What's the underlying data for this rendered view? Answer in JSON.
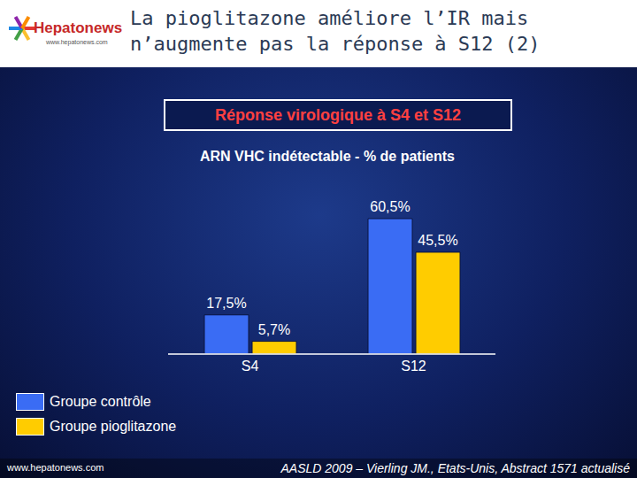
{
  "header": {
    "title": "La pioglitazone améliore l’IR mais n’augmente pas la réponse à S12 (2)",
    "logo": "Hepatonews",
    "logo_url": "www.hepatonews.com"
  },
  "footer": {
    "website": "www.hepatonews.com",
    "source": "AASLD 2009 – Vierling JM., Etats-Unis, Abstract 1571 actualisé"
  },
  "chart_data": {
    "type": "bar",
    "title": "Réponse virologique à S4 et S12",
    "subtitle": "ARN VHC indétectable - % de patients",
    "categories": [
      "S4",
      "S12"
    ],
    "series": [
      {
        "name": "Groupe contrôle",
        "color": "#3a6cf4",
        "values": [
          17.5,
          60.5
        ],
        "value_labels": [
          "17,5%",
          "60,5%"
        ]
      },
      {
        "name": "Groupe pioglitazone",
        "color": "#ffcc00",
        "values": [
          5.7,
          45.5
        ],
        "value_labels": [
          "5,7%",
          "45,5%"
        ]
      }
    ],
    "data_labels": true,
    "tick_labels": "x",
    "legend": "bottom-left"
  }
}
